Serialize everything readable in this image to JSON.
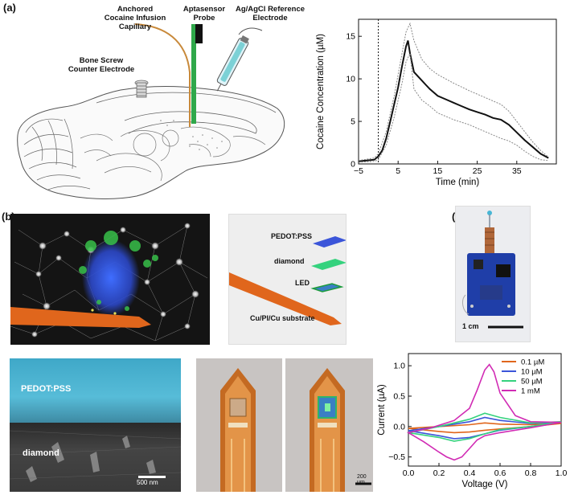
{
  "panel_a": {
    "label": "(a)",
    "labels": {
      "capillary": [
        "Anchored",
        "Cocaine Infusion",
        "Capillary"
      ],
      "probe": [
        "Aptasensor",
        "Probe"
      ],
      "reference": [
        "Ag/AgCl Reference",
        "Electrode"
      ],
      "screw": [
        "Bone Screw",
        "Counter Electrode"
      ]
    }
  },
  "panel_b": {
    "label": "(b)",
    "layers": {
      "pedot": "PEDOT:PSS",
      "diamond": "diamond",
      "led": "LED",
      "substrate": "Cu/PI/Cu substrate"
    },
    "sem": {
      "pedot": "PEDOT:PSS",
      "diamond": "diamond",
      "scale": "500 nm"
    },
    "photo_scale": "200 µm"
  },
  "panel_c": {
    "label": "(c)",
    "scale": "1 cm"
  },
  "colors": {
    "orange": "#e0661c",
    "green": "#35d27e",
    "blue": "#3b55d9",
    "magenta": "#d12bb4",
    "cyan": "#47b6d6"
  },
  "chart_data": [
    {
      "type": "line",
      "xlabel": "Time (min)",
      "ylabel": "Cocaine Concentration (µM)",
      "xlim": [
        -5,
        45
      ],
      "ylim": [
        0,
        17
      ],
      "xticks": [
        -5,
        5,
        15,
        25,
        35
      ],
      "yticks": [
        0,
        5,
        10,
        15
      ],
      "vline": 0,
      "series": [
        {
          "role": "mean",
          "x": [
            -5,
            -3,
            -1,
            0,
            1,
            2,
            3,
            4,
            5,
            6,
            7,
            7.5,
            8,
            9,
            10,
            11,
            12,
            13,
            15,
            17,
            19,
            21,
            23,
            25,
            27,
            29,
            31,
            33,
            35,
            37,
            39,
            41,
            43
          ],
          "y": [
            0.3,
            0.4,
            0.5,
            0.9,
            1.6,
            3,
            5,
            7,
            9,
            11.5,
            13.8,
            14.5,
            13,
            10.8,
            10.3,
            9.8,
            9.3,
            8.8,
            8,
            7.6,
            7.2,
            6.8,
            6.4,
            6.1,
            5.8,
            5.4,
            5.2,
            4.6,
            3.7,
            2.8,
            2,
            1.2,
            0.7
          ]
        },
        {
          "role": "upper",
          "x": [
            -5,
            -1,
            0,
            2,
            4,
            6,
            7,
            8,
            9,
            11,
            13,
            15,
            19,
            23,
            27,
            31,
            33,
            35,
            37,
            39,
            41,
            43
          ],
          "y": [
            0.4,
            0.7,
            1.2,
            3.8,
            8,
            13,
            15.5,
            16.5,
            14.5,
            12.3,
            11.2,
            10.5,
            9.5,
            8.6,
            7.8,
            7,
            6.2,
            5,
            3.8,
            2.6,
            1.6,
            0.8
          ]
        },
        {
          "role": "lower",
          "x": [
            -5,
            -1,
            0,
            2,
            4,
            6,
            7,
            8,
            9,
            11,
            13,
            15,
            19,
            23,
            27,
            31,
            33,
            35,
            37,
            39,
            41,
            43
          ],
          "y": [
            0.2,
            0.3,
            0.5,
            2.2,
            5.5,
            9.5,
            12,
            13,
            8.8,
            7.5,
            6.8,
            6,
            5.2,
            4.6,
            3.8,
            3,
            2.7,
            2.2,
            1.5,
            0.9,
            0.5,
            0.4
          ]
        }
      ]
    },
    {
      "type": "line",
      "xlabel": "Voltage (V)",
      "ylabel": "Current (µA)",
      "xlim": [
        0.0,
        1.0
      ],
      "ylim": [
        -0.65,
        1.2
      ],
      "xticks": [
        0.0,
        0.2,
        0.4,
        0.6,
        0.8,
        1.0
      ],
      "yticks": [
        -0.5,
        0.0,
        0.5,
        1.0
      ],
      "yticklabels": [
        "−0.5",
        "0.0",
        "0.5",
        "1.0"
      ],
      "legend": "top-right",
      "series": [
        {
          "name": "0.1 µM",
          "color": "#e0661c",
          "x": [
            0.0,
            0.2,
            0.4,
            0.5,
            0.6,
            0.8,
            1.0,
            1.0,
            0.8,
            0.6,
            0.5,
            0.4,
            0.3,
            0.2,
            0.0
          ],
          "y": [
            -0.03,
            0.0,
            0.03,
            0.06,
            0.04,
            0.03,
            0.05,
            0.05,
            0.0,
            -0.04,
            -0.06,
            -0.09,
            -0.1,
            -0.08,
            -0.03
          ]
        },
        {
          "name": "10 µM",
          "color": "#3b55d9",
          "x": [
            0.0,
            0.2,
            0.4,
            0.5,
            0.6,
            0.8,
            1.0,
            1.0,
            0.8,
            0.6,
            0.5,
            0.4,
            0.3,
            0.2,
            0.0
          ],
          "y": [
            -0.07,
            0.0,
            0.08,
            0.15,
            0.1,
            0.05,
            0.07,
            0.07,
            0.0,
            -0.06,
            -0.12,
            -0.18,
            -0.2,
            -0.15,
            -0.07
          ]
        },
        {
          "name": "50 µM",
          "color": "#35d27e",
          "x": [
            0.0,
            0.2,
            0.4,
            0.5,
            0.6,
            0.8,
            1.0,
            1.0,
            0.8,
            0.6,
            0.5,
            0.4,
            0.3,
            0.2,
            0.0
          ],
          "y": [
            -0.1,
            0.0,
            0.12,
            0.22,
            0.15,
            0.06,
            0.08,
            0.08,
            0.0,
            -0.05,
            -0.12,
            -0.2,
            -0.24,
            -0.18,
            -0.1
          ]
        },
        {
          "name": "1 mM",
          "color": "#d12bb4",
          "x": [
            0.0,
            0.15,
            0.3,
            0.4,
            0.45,
            0.5,
            0.53,
            0.56,
            0.6,
            0.7,
            0.8,
            1.0,
            1.0,
            0.8,
            0.6,
            0.5,
            0.45,
            0.4,
            0.35,
            0.3,
            0.25,
            0.2,
            0.1,
            0.0
          ],
          "y": [
            -0.1,
            -0.02,
            0.1,
            0.3,
            0.6,
            0.93,
            1.02,
            0.9,
            0.55,
            0.18,
            0.08,
            0.07,
            0.07,
            -0.02,
            -0.1,
            -0.15,
            -0.22,
            -0.36,
            -0.5,
            -0.55,
            -0.5,
            -0.42,
            -0.25,
            -0.1
          ]
        }
      ]
    }
  ]
}
